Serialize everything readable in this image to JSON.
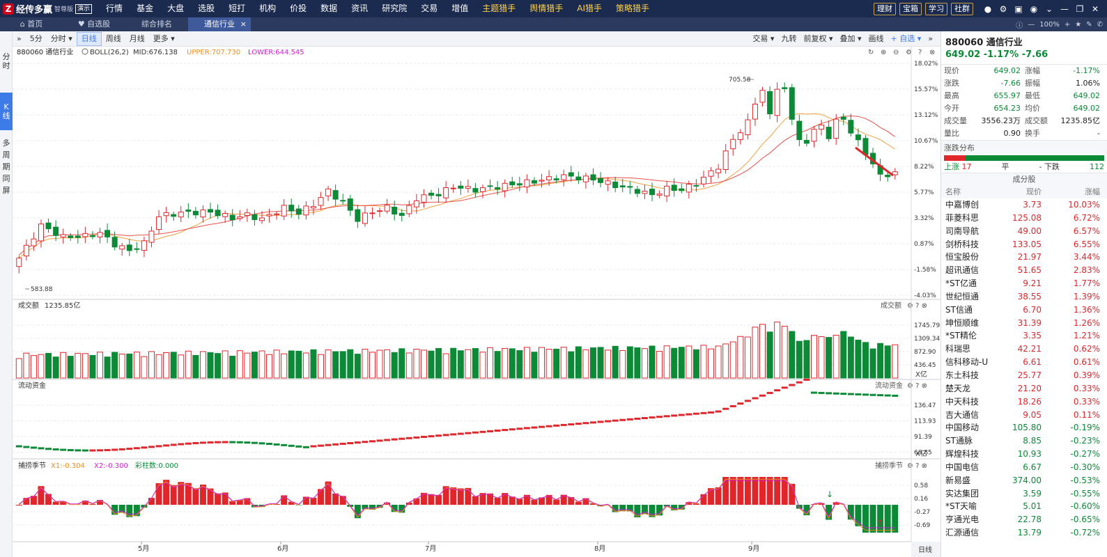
{
  "app": {
    "name": "经传多赢",
    "edition": "智尊版",
    "badge": "演示"
  },
  "menu": [
    "行情",
    "基金",
    "大盘",
    "选股",
    "短打",
    "机构",
    "价投",
    "数据",
    "资讯",
    "研究院",
    "交易",
    "增值",
    "主题猎手",
    "舆情猎手",
    "AI猎手",
    "策略猎手"
  ],
  "top_right": {
    "pills": [
      "理财",
      "宝箱",
      "学习",
      "社群"
    ]
  },
  "tabs": [
    {
      "label": "首页"
    },
    {
      "label": "自选股"
    },
    {
      "label": "综合排名"
    },
    {
      "label": "通信行业",
      "active": true
    }
  ],
  "zoom": "100%",
  "left_tabs": [
    "分时",
    "K线",
    "多周期同屏"
  ],
  "toolbar": {
    "periods": [
      "5分",
      "分时",
      "日线",
      "周线",
      "月线",
      "更多"
    ],
    "active_period": "日线",
    "right_items": [
      "交易",
      "九转",
      "前复权",
      "叠加",
      "画线",
      "自选"
    ]
  },
  "main": {
    "header": "880060 通信行业",
    "indicator": "BOLL(26,2)",
    "mid": "MID:676.138",
    "upper": "UPPER:707.730",
    "lower": "LOWER:644.545",
    "price_ticks": [
      "18.02%",
      "15.57%",
      "13.12%",
      "10.67%",
      "8.22%",
      "5.77%",
      "3.32%",
      "0.87%",
      "-1.58%",
      "-4.03%"
    ],
    "high_label": "705.58",
    "low_label": "583.88",
    "x_labels": [
      "5月",
      "6月",
      "7月",
      "8月",
      "9月"
    ],
    "period_label": "日线"
  },
  "volume": {
    "label": "成交额",
    "value": "1235.85亿",
    "ticks": [
      "1745.79",
      "1309.34",
      "872.90",
      "436.45"
    ],
    "unit": "X亿",
    "corner": "成交额"
  },
  "flow": {
    "label": "流动资金",
    "ticks": [
      "136.47",
      "113.93",
      "91.39",
      "68.85"
    ],
    "unit": "X亿",
    "corner": "流动资金"
  },
  "season": {
    "label": "捕捞季节",
    "x1": "X1:-0.304",
    "x2": "X2:-0.300",
    "bars": "彩柱数:0.000",
    "ticks": [
      "0.58",
      "0.16",
      "-0.27",
      "-0.69"
    ],
    "corner": "捕捞季节"
  },
  "quote": {
    "code": "880060 通信行业",
    "price_line": "649.02 -1.17% -7.66",
    "rows": [
      {
        "l1": "现价",
        "v1": "649.02",
        "c1": "g",
        "l2": "涨幅",
        "v2": "-1.17%",
        "c2": "g"
      },
      {
        "l1": "涨跌",
        "v1": "-7.66",
        "c1": "g",
        "l2": "振幅",
        "v2": "1.06%",
        "c2": "k"
      },
      {
        "l1": "最高",
        "v1": "655.97",
        "c1": "g",
        "l2": "最低",
        "v2": "649.02",
        "c2": "g"
      },
      {
        "l1": "今开",
        "v1": "654.23",
        "c1": "g",
        "l2": "均价",
        "v2": "649.02",
        "c2": "g"
      },
      {
        "l1": "成交量",
        "v1": "3556.23万",
        "c1": "k",
        "l2": "成交额",
        "v2": "1235.85亿",
        "c2": "k"
      },
      {
        "l1": "量比",
        "v1": "0.90",
        "c1": "k",
        "l2": "换手",
        "v2": "-",
        "c2": "k"
      }
    ]
  },
  "distribution": {
    "title": "涨跌分布",
    "up_label": "上涨",
    "up": "17",
    "flat_label": "平",
    "flat": "-",
    "down_label": "下跌",
    "down": "112"
  },
  "components": {
    "title": "成分股",
    "headers": [
      "名称",
      "现价",
      "涨幅"
    ],
    "rows": [
      {
        "name": "中嘉博创",
        "price": "3.73",
        "chg": "10.03%"
      },
      {
        "name": "菲菱科思",
        "price": "125.08",
        "chg": "6.72%"
      },
      {
        "name": "司南导航",
        "price": "49.00",
        "chg": "6.57%"
      },
      {
        "name": "剑桥科技",
        "price": "133.05",
        "chg": "6.55%"
      },
      {
        "name": "恒宝股份",
        "price": "21.97",
        "chg": "3.44%"
      },
      {
        "name": "超讯通信",
        "price": "51.65",
        "chg": "2.83%"
      },
      {
        "name": "*ST亿通",
        "price": "9.21",
        "chg": "1.77%"
      },
      {
        "name": "世纪恒通",
        "price": "38.55",
        "chg": "1.39%"
      },
      {
        "name": "ST信通",
        "price": "6.70",
        "chg": "1.36%"
      },
      {
        "name": "坤恒顺维",
        "price": "31.39",
        "chg": "1.26%"
      },
      {
        "name": "*ST精伦",
        "price": "3.35",
        "chg": "1.21%"
      },
      {
        "name": "科瑞思",
        "price": "42.21",
        "chg": "0.62%"
      },
      {
        "name": "信科移动-U",
        "price": "6.61",
        "chg": "0.61%"
      },
      {
        "name": "东土科技",
        "price": "25.77",
        "chg": "0.39%"
      },
      {
        "name": "楚天龙",
        "price": "21.20",
        "chg": "0.33%"
      },
      {
        "name": "中天科技",
        "price": "18.26",
        "chg": "0.33%"
      },
      {
        "name": "吉大通信",
        "price": "9.05",
        "chg": "0.11%"
      },
      {
        "name": "中国移动",
        "price": "105.80",
        "chg": "-0.19%"
      },
      {
        "name": "ST通脉",
        "price": "8.85",
        "chg": "-0.23%"
      },
      {
        "name": "辉煌科技",
        "price": "10.93",
        "chg": "-0.27%"
      },
      {
        "name": "中国电信",
        "price": "6.67",
        "chg": "-0.30%"
      },
      {
        "name": "新易盛",
        "price": "374.00",
        "chg": "-0.53%"
      },
      {
        "name": "实达集团",
        "price": "3.59",
        "chg": "-0.55%"
      },
      {
        "name": "*ST天喻",
        "price": "5.01",
        "chg": "-0.60%"
      },
      {
        "name": "亨通光电",
        "price": "22.78",
        "chg": "-0.65%"
      },
      {
        "name": "汇源通信",
        "price": "13.79",
        "chg": "-0.72%"
      }
    ]
  },
  "colors": {
    "up": "#e0262b",
    "down": "#0c8a37",
    "ma1": "#e8504a",
    "ma2": "#f0a040"
  }
}
